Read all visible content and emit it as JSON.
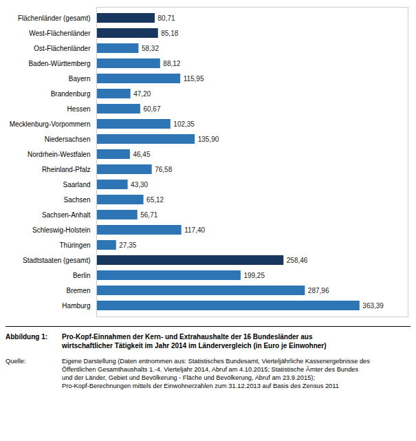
{
  "chart_data": {
    "type": "bar",
    "orientation": "horizontal",
    "categories": [
      "Flächenländer (gesamt)",
      "West-Flächenländer",
      "Ost-Flächenländer",
      "Baden-Württemberg",
      "Bayern",
      "Brandenburg",
      "Hessen",
      "Mecklenburg-Vorpommern",
      "Niedersachsen",
      "Nordrhein-Westfalen",
      "Rheinland-Pfalz",
      "Saarland",
      "Sachsen",
      "Sachsen-Anhalt",
      "Schleswig-Holstein",
      "Thüringen",
      "Stadtstaaten (gesamt)",
      "Berlin",
      "Bremen",
      "Hamburg"
    ],
    "values": [
      80.71,
      85.18,
      58.32,
      88.12,
      115.95,
      47.2,
      60.67,
      102.35,
      135.9,
      46.45,
      76.58,
      43.3,
      65.12,
      56.71,
      117.4,
      27.35,
      258.46,
      199.25,
      287.96,
      363.39
    ],
    "value_labels": [
      "80,71",
      "85,18",
      "58,32",
      "88,12",
      "115,95",
      "47,20",
      "60,67",
      "102,35",
      "135,90",
      "46,45",
      "76,58",
      "43,30",
      "65,12",
      "56,71",
      "117,40",
      "27,35",
      "258,46",
      "199,25",
      "287,96",
      "363,39"
    ],
    "colors": [
      "#17375E",
      "#17375E",
      "#2E75B6",
      "#2E75B6",
      "#2E75B6",
      "#2E75B6",
      "#2E75B6",
      "#2E75B6",
      "#2E75B6",
      "#2E75B6",
      "#2E75B6",
      "#2E75B6",
      "#2E75B6",
      "#2E75B6",
      "#2E75B6",
      "#2E75B6",
      "#17375E",
      "#2E75B6",
      "#2E75B6",
      "#2E75B6"
    ],
    "xlim": [
      0,
      430
    ],
    "data_labels": true,
    "tick_labels": "y",
    "annotations": [
      "Abbildung 1:",
      "Pro-Kopf-Einnahmen der Kern- und Extrahaushalte der 16 Bundesländer aus\nwirtschaftlicher Tätigkeit im Jahr 2014 im Ländervergleich (in Euro je Einwohner)",
      "Quelle:",
      "Eigene Darstellung (Daten entnommen aus: Statistisches Bundesamt, Vierteljährliche Kassenergebnisse des\nÖffentlichen Gesamthaushalts 1.-4. Vierteljahr 2014, Abruf am 4.10.2015; Statistische Ämter des Bundes\nund der Länder, Gebiet und Bevölkerung - Fläche und Bevölkerung, Abruf am 23.9.2015);\nPro-Kopf-Berechnungen mittels der Einwohnerzahlen zum 31.12.2013 auf Basis des Zensus 2011"
    ]
  }
}
